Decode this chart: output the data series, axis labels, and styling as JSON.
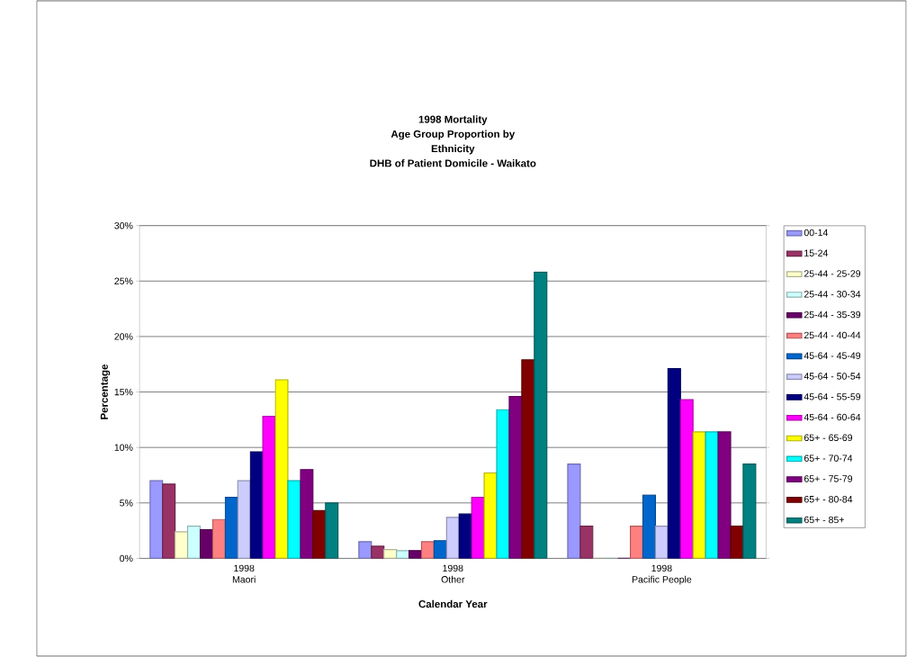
{
  "chart_data": {
    "type": "bar",
    "title": "1998 Mortality\nAge Group Proportion by\nEthnicity\nDHB of Patient Domicile - Waikato",
    "xlabel": "Calendar Year",
    "ylabel": "Percentage",
    "categories": [
      "1998\nMaori",
      "1998\nOther",
      "1998\nPacific People"
    ],
    "ylim": [
      0,
      30
    ],
    "yticks": [
      {
        "value": 0,
        "label": "0%"
      },
      {
        "value": 5,
        "label": "5%"
      },
      {
        "value": 10,
        "label": "10%"
      },
      {
        "value": 15,
        "label": "15%"
      },
      {
        "value": 20,
        "label": "20%"
      },
      {
        "value": 25,
        "label": "25%"
      },
      {
        "value": 30,
        "label": "30%"
      }
    ],
    "grid": "y",
    "legend": "right",
    "series": [
      {
        "name": "00-14",
        "color": "#9999ff",
        "values": [
          7.0,
          1.5,
          8.5
        ]
      },
      {
        "name": "15-24",
        "color": "#993366",
        "values": [
          6.7,
          1.1,
          2.9
        ]
      },
      {
        "name": "25-44 - 25-29",
        "color": "#ffffcc",
        "values": [
          2.4,
          0.8,
          0
        ]
      },
      {
        "name": "25-44 - 30-34",
        "color": "#ccffff",
        "values": [
          2.9,
          0.7,
          0
        ]
      },
      {
        "name": "25-44 - 35-39",
        "color": "#660066",
        "values": [
          2.6,
          0.7,
          0
        ]
      },
      {
        "name": "25-44 - 40-44",
        "color": "#ff8080",
        "values": [
          3.5,
          1.5,
          2.9
        ]
      },
      {
        "name": "45-64 - 45-49",
        "color": "#0066cc",
        "values": [
          5.5,
          1.6,
          5.7
        ]
      },
      {
        "name": "45-64 - 50-54",
        "color": "#ccccff",
        "values": [
          7.0,
          3.7,
          2.9
        ]
      },
      {
        "name": "45-64 - 55-59",
        "color": "#000080",
        "values": [
          9.6,
          4.0,
          17.1
        ]
      },
      {
        "name": "45-64 - 60-64",
        "color": "#ff00ff",
        "values": [
          12.8,
          5.5,
          14.3
        ]
      },
      {
        "name": "65+ - 65-69",
        "color": "#ffff00",
        "values": [
          16.1,
          7.7,
          11.4
        ]
      },
      {
        "name": "65+ - 70-74",
        "color": "#00ffff",
        "values": [
          7.0,
          13.4,
          11.4
        ]
      },
      {
        "name": "65+ - 75-79",
        "color": "#800080",
        "values": [
          8.0,
          14.6,
          11.4
        ]
      },
      {
        "name": "65+ - 80-84",
        "color": "#800000",
        "values": [
          4.3,
          17.9,
          2.9
        ]
      },
      {
        "name": "65+ - 85+",
        "color": "#008080",
        "values": [
          5.0,
          25.8,
          8.5
        ]
      }
    ]
  }
}
